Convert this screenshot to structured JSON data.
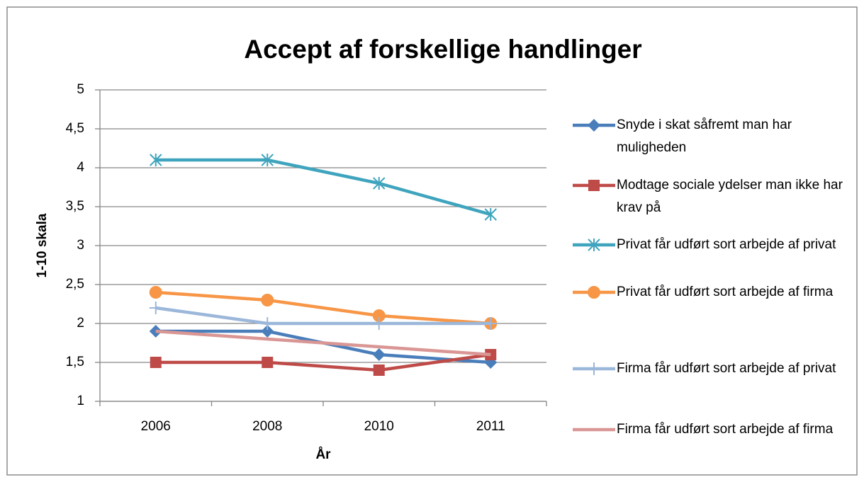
{
  "chart_data": {
    "type": "line",
    "title": "Accept af forskellige handlinger",
    "x_label": "År",
    "y_label": "1-10 skala",
    "categories": [
      "2006",
      "2008",
      "2010",
      "2011"
    ],
    "ylim": [
      1,
      5
    ],
    "yticks": [
      1,
      {
        "value": 1.5,
        "label": "1,5"
      },
      2,
      {
        "value": 2.5,
        "label": "2,5"
      },
      3,
      {
        "value": 3.5,
        "label": "3,5"
      },
      4,
      {
        "value": 4.5,
        "label": "4,5"
      },
      5
    ],
    "grid": true,
    "legend": "right",
    "series": [
      {
        "name": "Snyde i skat såfremt man har muligheden",
        "color": "#4a7ebb",
        "marker": "diamond",
        "values": [
          1.9,
          1.9,
          1.6,
          1.5
        ]
      },
      {
        "name": "Modtage sociale ydelser man ikke har krav på",
        "color": "#be4b48",
        "marker": "square",
        "values": [
          1.5,
          1.5,
          1.4,
          1.6
        ]
      },
      {
        "name": "Privat får udført sort arbejde af privat",
        "color": "#3fa4bd",
        "marker": "star",
        "values": [
          4.1,
          4.1,
          3.8,
          3.4
        ]
      },
      {
        "name": "Privat får udført sort arbejde af firma",
        "color": "#f79646",
        "marker": "circle",
        "values": [
          2.4,
          2.3,
          2.1,
          2.0
        ]
      },
      {
        "name": "Firma får udført sort arbejde af privat",
        "color": "#9bb7d9",
        "marker": "plus",
        "values": [
          2.2,
          2.0,
          2.0,
          2.0
        ]
      },
      {
        "name": "Firma får udført sort arbejde af firma",
        "color": "#d99694",
        "marker": "none",
        "values": [
          1.9,
          1.8,
          1.7,
          1.6
        ]
      }
    ]
  }
}
